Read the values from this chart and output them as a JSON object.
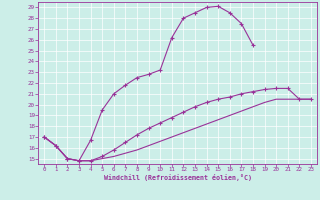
{
  "xlabel": "Windchill (Refroidissement éolien,°C)",
  "bg_color": "#cceee8",
  "line_color": "#993399",
  "xlim": [
    -0.5,
    23.5
  ],
  "ylim": [
    14.5,
    29.5
  ],
  "xticks": [
    0,
    1,
    2,
    3,
    4,
    5,
    6,
    7,
    8,
    9,
    10,
    11,
    12,
    13,
    14,
    15,
    16,
    17,
    18,
    19,
    20,
    21,
    22,
    23
  ],
  "yticks": [
    15,
    16,
    17,
    18,
    19,
    20,
    21,
    22,
    23,
    24,
    25,
    26,
    27,
    28,
    29
  ],
  "curve1_x": [
    0,
    1,
    2,
    3,
    4,
    5,
    6,
    7,
    8,
    9,
    10,
    11,
    12,
    13,
    14,
    15,
    16,
    17,
    18
  ],
  "curve1_y": [
    17.0,
    16.2,
    15.0,
    14.8,
    16.7,
    19.5,
    21.0,
    21.8,
    22.5,
    22.8,
    23.2,
    26.2,
    28.0,
    28.5,
    29.0,
    29.1,
    28.5,
    27.5,
    25.5
  ],
  "curve2_x": [
    0,
    1,
    2,
    3,
    4,
    5,
    6,
    7,
    8,
    9,
    10,
    11,
    12,
    13,
    14,
    15,
    16,
    17,
    18,
    19,
    20,
    21,
    22,
    23
  ],
  "curve2_y": [
    17.0,
    16.2,
    15.0,
    14.8,
    14.8,
    15.2,
    15.8,
    16.5,
    17.2,
    17.8,
    18.3,
    18.8,
    19.3,
    19.8,
    20.2,
    20.5,
    20.7,
    21.0,
    21.2,
    21.4,
    21.5,
    21.5,
    20.5,
    20.5
  ],
  "curve3_x": [
    0,
    1,
    2,
    3,
    4,
    5,
    6,
    7,
    8,
    9,
    10,
    11,
    12,
    13,
    14,
    15,
    16,
    17,
    18,
    19,
    20,
    21,
    22,
    23
  ],
  "curve3_y": [
    17.0,
    16.2,
    15.0,
    14.8,
    14.8,
    15.0,
    15.2,
    15.5,
    15.8,
    16.2,
    16.6,
    17.0,
    17.4,
    17.8,
    18.2,
    18.6,
    19.0,
    19.4,
    19.8,
    20.2,
    20.5,
    20.5,
    20.5,
    20.5
  ]
}
